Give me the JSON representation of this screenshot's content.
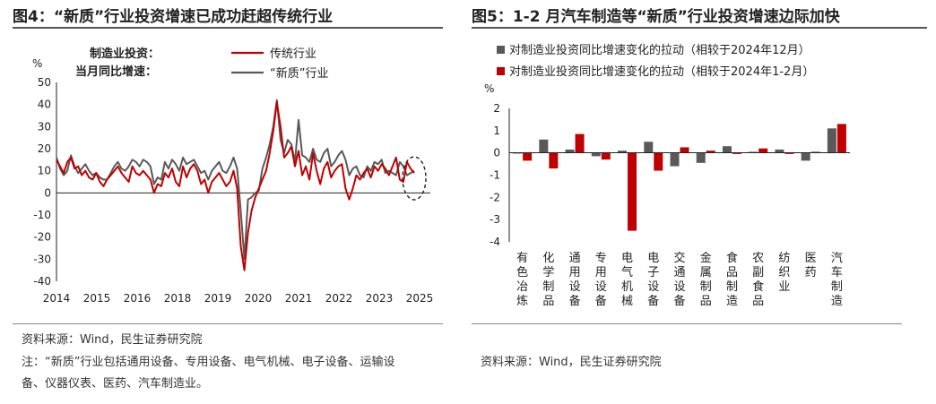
{
  "left": {
    "title": "图4：“新质”行业投资增速已成功赶超传统行业",
    "legend_caption_1": "制造业投资：",
    "legend_caption_2": "当月同比增速：",
    "unit": "%",
    "source": "资料来源：Wind，民生证券研究院",
    "note_1": "注：“新质”行业包括通用设备、专用设备、电气机械、电子设备、运输设",
    "note_2": "备、仪器仪表、医药、汽车制造业。",
    "colors": {
      "traditional": "#c00000",
      "new": "#595959"
    }
  },
  "right": {
    "title": "图5：1-2 月汽车制造等“新质”行业投资增速边际加快",
    "unit": "%",
    "source": "资料来源：Wind，民生证券研究院",
    "colors": {
      "dec": "#595959",
      "janfeb": "#c00000"
    }
  },
  "chart_data": [
    {
      "type": "line",
      "ylim": [
        -40,
        50
      ],
      "yticks": [
        "50",
        "40",
        "30",
        "20",
        "10",
        "0",
        "-10",
        "-20",
        "-30",
        "-40"
      ],
      "xticks": [
        "2014",
        "2015",
        "2016",
        "2018",
        "2019",
        "2020",
        "2021",
        "2022",
        "2023",
        "2025"
      ],
      "series": [
        {
          "name": "传统行业",
          "values": [
            15,
            12,
            9,
            14,
            16,
            11,
            12,
            8,
            10,
            7,
            6,
            9,
            5,
            3,
            6,
            8,
            10,
            12,
            9,
            7,
            5,
            12,
            9,
            8,
            10,
            8,
            6,
            0,
            4,
            3,
            9,
            7,
            11,
            5,
            3,
            12,
            7,
            11,
            13,
            10,
            4,
            6,
            0,
            5,
            7,
            9,
            6,
            3,
            5,
            10,
            2,
            -24,
            -35,
            -18,
            -8,
            -2,
            2,
            6,
            10,
            18,
            28,
            41,
            30,
            16,
            18,
            21,
            12,
            19,
            8,
            12,
            6,
            18,
            10,
            4,
            11,
            14,
            7,
            10,
            12,
            13,
            2,
            -3,
            2,
            8,
            6,
            9,
            11,
            7,
            12,
            10,
            13,
            11,
            8,
            12,
            16,
            6,
            5,
            14,
            11,
            9
          ]
        },
        {
          "name": "“新质”行业",
          "values": [
            16,
            11,
            8,
            10,
            17,
            12,
            9,
            11,
            13,
            10,
            8,
            9,
            7,
            6,
            6,
            9,
            12,
            14,
            11,
            10,
            12,
            15,
            14,
            12,
            15,
            14,
            12,
            4,
            7,
            6,
            14,
            11,
            15,
            13,
            10,
            16,
            13,
            14,
            15,
            12,
            9,
            10,
            6,
            10,
            12,
            14,
            10,
            9,
            12,
            16,
            11,
            -8,
            -30,
            -3,
            -2,
            0,
            1,
            11,
            16,
            22,
            30,
            42,
            24,
            18,
            24,
            22,
            14,
            33,
            17,
            16,
            14,
            20,
            15,
            14,
            18,
            20,
            12,
            14,
            17,
            19,
            15,
            8,
            11,
            12,
            8,
            7,
            12,
            10,
            14,
            13,
            15,
            9,
            10,
            9,
            8,
            14,
            12,
            8,
            9,
            10
          ]
        }
      ]
    },
    {
      "type": "bar",
      "ylim": [
        -4,
        2
      ],
      "yticks": [
        "2",
        "1",
        "0",
        "-1",
        "-2",
        "-3",
        "-4"
      ],
      "categories": [
        "有色冶炼",
        "化学制品",
        "通用设备",
        "专用设备",
        "电气机械",
        "电子设备",
        "交通设备",
        "金属制品",
        "食品制造",
        "农副食品",
        "纺织业",
        "医药",
        "汽车制造"
      ],
      "series": [
        {
          "name": "对制造业投资同比增速变化的拉动（相较于2024年12月）",
          "values": [
            0.0,
            0.6,
            0.15,
            -0.15,
            0.1,
            0.5,
            -0.6,
            -0.45,
            0.3,
            0.05,
            0.15,
            -0.35,
            1.1
          ]
        },
        {
          "name": "对制造业投资同比增速变化的拉动（相较于2024年1-2月）",
          "values": [
            -0.35,
            -0.7,
            0.85,
            -0.3,
            -3.5,
            -0.8,
            0.25,
            0.1,
            -0.05,
            0.2,
            -0.05,
            0.05,
            1.3
          ]
        }
      ]
    }
  ]
}
